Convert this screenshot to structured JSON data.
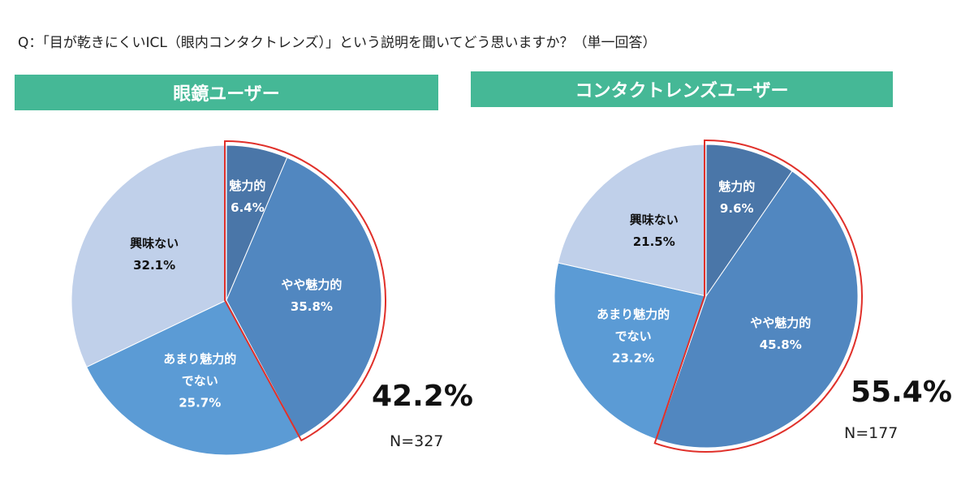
{
  "question": "Q：「目が乾きにくいICL（眼内コンタクトレンズ）」という説明を聞いてどう思いますか？（単一回答）",
  "chart_data": [
    {
      "type": "pie",
      "title": "眼鏡ユーザー",
      "categories": [
        "魅力的",
        "やや魅力的",
        "あまり魅力的でない",
        "興味ない"
      ],
      "values": [
        6.4,
        35.8,
        25.7,
        32.1
      ],
      "value_labels": [
        "6.4%",
        "35.8%",
        "25.7%",
        "32.1%"
      ],
      "highlight_total": "42.2%",
      "n": "N=327"
    },
    {
      "type": "pie",
      "title": "コンタクトレンズユーザー",
      "categories": [
        "魅力的",
        "やや魅力的",
        "あまり魅力的でない",
        "興味ない"
      ],
      "values": [
        9.6,
        45.8,
        23.2,
        21.5
      ],
      "value_labels": [
        "9.6%",
        "45.8%",
        "23.2%",
        "21.5%"
      ],
      "highlight_total": "55.4%",
      "n": "N=177"
    }
  ],
  "colors": {
    "slices": [
      "#4a76a8",
      "#5187c0",
      "#5b9bd5",
      "#c0d0ea"
    ],
    "label_text": [
      "#ffffff",
      "#ffffff",
      "#ffffff",
      "#111111"
    ],
    "highlight": "#e0302a",
    "header": "#45b896"
  }
}
